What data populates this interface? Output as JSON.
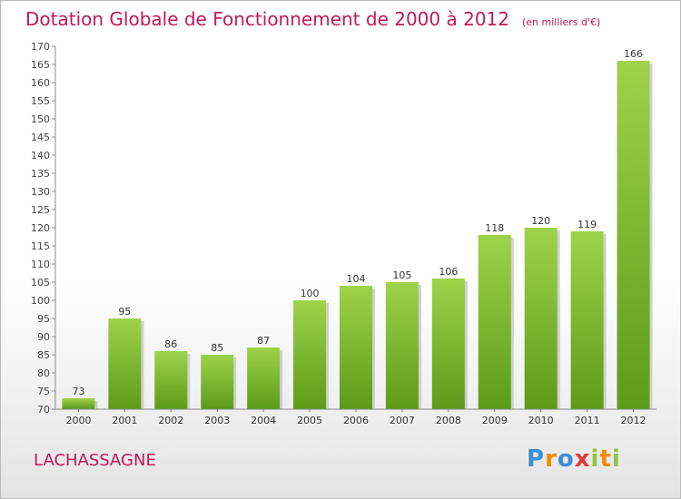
{
  "header": {
    "title": "Dotation Globale de Fonctionnement de 2000 à 2012",
    "unit": "(en milliers d'€)"
  },
  "footer": {
    "place": "LACHASSAGNE",
    "logo": [
      "P",
      "r",
      "o",
      "x",
      "i",
      "t",
      "i"
    ],
    "logo_colors": [
      "#3a8fd6",
      "#f28c00",
      "#3a8fd6",
      "#e53935",
      "#8cc63f",
      "#f28c00",
      "#8cc63f"
    ]
  },
  "colors": {
    "title": "#c2185b",
    "bar_top": "#9ed34a",
    "bar_bottom": "#5c9b19",
    "axis": "#888888"
  },
  "chart_data": {
    "type": "bar",
    "title": "Dotation Globale de Fonctionnement de 2000 à 2012",
    "subtitle": "(en milliers d'€)",
    "categories": [
      "2000",
      "2001",
      "2002",
      "2003",
      "2004",
      "2005",
      "2006",
      "2007",
      "2008",
      "2009",
      "2010",
      "2011",
      "2012"
    ],
    "values": [
      73,
      95,
      86,
      85,
      87,
      100,
      104,
      105,
      106,
      118,
      120,
      119,
      166
    ],
    "ylim": [
      70,
      170
    ],
    "yticks": [
      70,
      75,
      80,
      85,
      90,
      95,
      100,
      105,
      110,
      115,
      120,
      125,
      130,
      135,
      140,
      145,
      150,
      155,
      160,
      165,
      170
    ],
    "grid": false,
    "legend": "none",
    "xlabel": "",
    "ylabel": ""
  }
}
